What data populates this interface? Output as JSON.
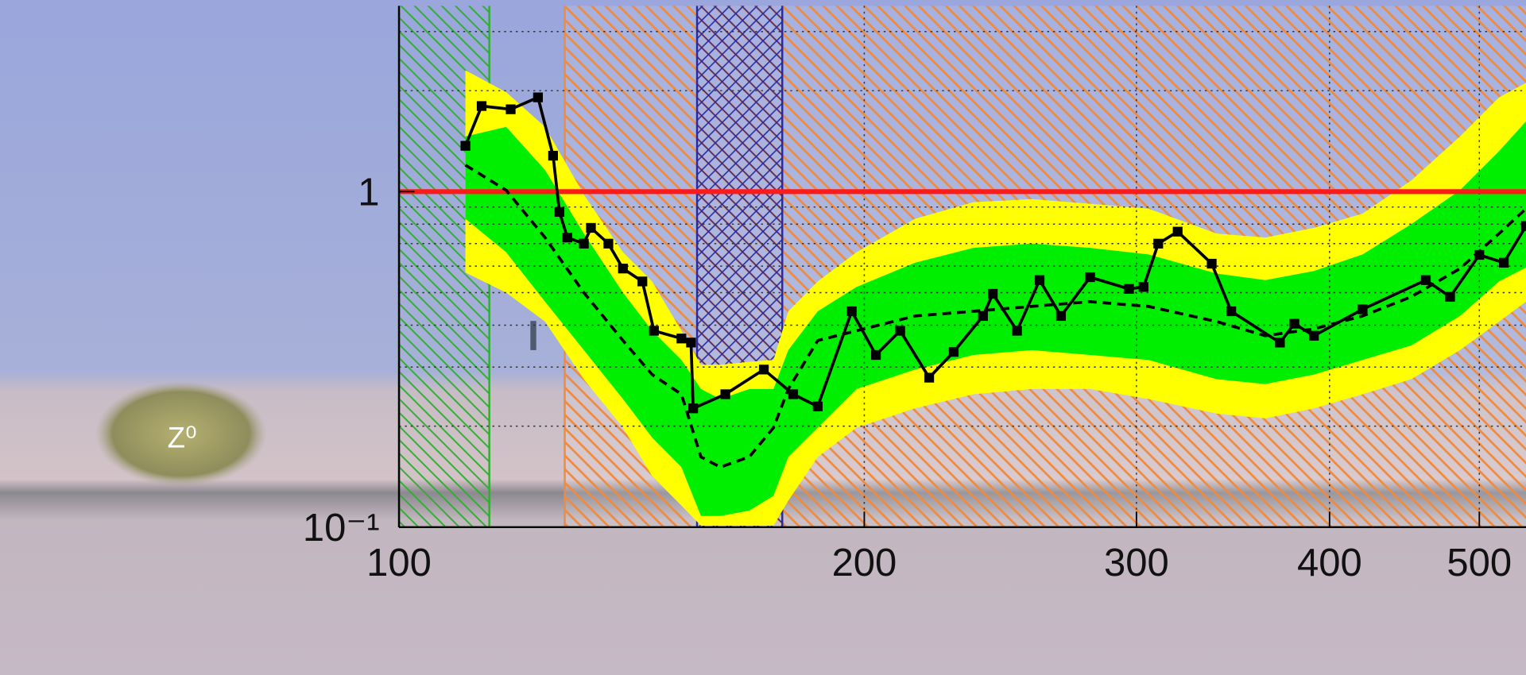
{
  "photo_label": "Z⁰",
  "chart_data": {
    "type": "line",
    "xscale": "log",
    "yscale": "log",
    "xlim": [
      100,
      536
    ],
    "ylim": [
      0.1,
      3.58
    ],
    "xticks": [
      100,
      200,
      300,
      400,
      500
    ],
    "yticks": [
      {
        "value": 0.1,
        "label": "10⁻¹"
      },
      1
    ],
    "yminor": [
      0.2,
      0.3,
      0.4,
      0.5,
      0.6,
      0.7,
      0.8,
      0.9,
      2,
      3
    ],
    "grid": true,
    "reference_line": {
      "value": 1,
      "color": "#ff1a1a"
    },
    "regions": [
      {
        "x": [
          100,
          114.4
        ],
        "color": "#2fae2f",
        "pattern": "hatch-left"
      },
      {
        "x": [
          128,
          536
        ],
        "color": "#f08a3c",
        "pattern": "hatch-right"
      },
      {
        "x": [
          155.9,
          177.0
        ],
        "color": "#2a2aa0",
        "pattern": "cross"
      }
    ],
    "expected": {
      "color": "#000000",
      "x": [
        110.4,
        117.3,
        124.3,
        131.7,
        139.6,
        145.8,
        152.3,
        156.8,
        161.4,
        168.5,
        174.7,
        178.6,
        186.6,
        197.7,
        215.7,
        235.3,
        256.7,
        280.0,
        305.4,
        338.1,
        363.5,
        390.8,
        420.2,
        451.8,
        485.8,
        514.9,
        536.0
      ],
      "values": [
        1.2,
        1.01,
        0.73,
        0.5,
        0.36,
        0.285,
        0.249,
        0.162,
        0.151,
        0.162,
        0.198,
        0.258,
        0.36,
        0.385,
        0.426,
        0.44,
        0.455,
        0.47,
        0.455,
        0.41,
        0.372,
        0.39,
        0.426,
        0.486,
        0.59,
        0.75,
        0.89
      ]
    },
    "bands": [
      {
        "color": "#ffff00",
        "high": [
          2.3,
          1.98,
          1.56,
          0.98,
          0.66,
          0.54,
          0.385,
          0.305,
          0.305,
          0.311,
          0.315,
          0.44,
          0.54,
          0.66,
          0.83,
          0.93,
          0.95,
          0.92,
          0.89,
          0.75,
          0.73,
          0.78,
          0.86,
          1.08,
          1.46,
          1.91,
          2.11
        ],
        "low": [
          0.574,
          0.5,
          0.41,
          0.276,
          0.198,
          0.142,
          0.116,
          0.101,
          0.101,
          0.101,
          0.101,
          0.12,
          0.162,
          0.198,
          0.226,
          0.249,
          0.258,
          0.258,
          0.241,
          0.218,
          0.211,
          0.226,
          0.249,
          0.276,
          0.337,
          0.41,
          0.47
        ]
      },
      {
        "color": "#00ee00",
        "high": [
          1.46,
          1.56,
          1.16,
          0.75,
          0.5,
          0.385,
          0.315,
          0.258,
          0.241,
          0.258,
          0.258,
          0.337,
          0.44,
          0.52,
          0.614,
          0.68,
          0.7,
          0.68,
          0.65,
          0.57,
          0.545,
          0.58,
          0.65,
          0.8,
          1.01,
          1.32,
          1.62
        ],
        "low": [
          0.83,
          0.66,
          0.47,
          0.337,
          0.241,
          0.185,
          0.151,
          0.108,
          0.108,
          0.112,
          0.124,
          0.162,
          0.198,
          0.258,
          0.295,
          0.326,
          0.337,
          0.326,
          0.315,
          0.276,
          0.267,
          0.285,
          0.315,
          0.348,
          0.426,
          0.54,
          0.594
        ]
      }
    ],
    "observed": {
      "color": "#000000",
      "x": [
        110.4,
        113.1,
        118.1,
        123.0,
        125.8,
        127.0,
        128.5,
        131.7,
        133.1,
        136.6,
        139.6,
        143.7,
        146.2,
        152.3,
        154.5,
        155.0,
        162.6,
        172.2,
        179.9,
        186.6,
        196.3,
        203.5,
        211.0,
        220.3,
        228.5,
        238.7,
        242.2,
        251.1,
        259.7,
        268.1,
        280.0,
        296.7,
        303.2,
        309.9,
        319.0,
        335.6,
        345.5,
        371.5,
        379.6,
        390.8,
        420.2,
        461.7,
        478.7,
        500.0,
        518.6,
        536.0
      ],
      "values": [
        1.37,
        1.8,
        1.76,
        1.91,
        1.28,
        0.87,
        0.73,
        0.7,
        0.78,
        0.7,
        0.59,
        0.54,
        0.385,
        0.365,
        0.355,
        0.226,
        0.249,
        0.295,
        0.249,
        0.229,
        0.44,
        0.326,
        0.385,
        0.279,
        0.333,
        0.426,
        0.496,
        0.385,
        0.545,
        0.426,
        0.556,
        0.513,
        0.52,
        0.7,
        0.76,
        0.61,
        0.44,
        0.355,
        0.404,
        0.372,
        0.446,
        0.545,
        0.486,
        0.648,
        0.614,
        0.79
      ]
    }
  }
}
